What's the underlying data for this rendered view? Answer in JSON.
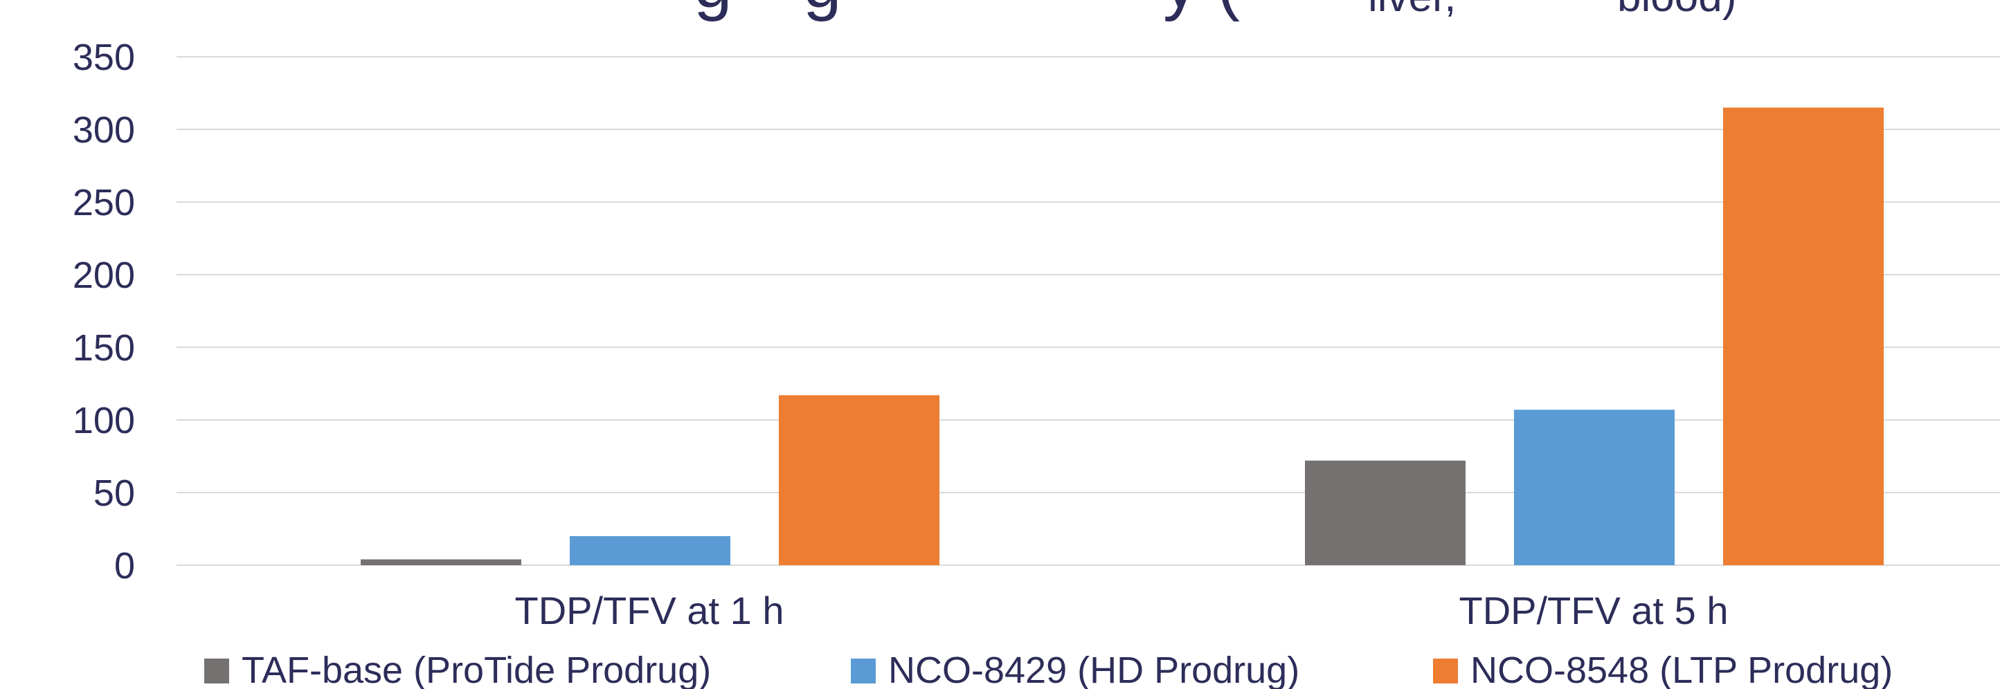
{
  "chart_data": {
    "type": "bar",
    "title_fragments": [
      "g",
      "g",
      "y (",
      "liver,",
      "blood)"
    ],
    "categories": [
      "TDP/TFV at 1 h",
      "TDP/TFV at 5 h"
    ],
    "series": [
      {
        "name": "TAF-base (ProTide Prodrug)",
        "values": [
          4,
          72
        ],
        "color": "#757171"
      },
      {
        "name": "NCO-8429 (HD Prodrug)",
        "values": [
          20,
          107
        ],
        "color": "#5b9bd5"
      },
      {
        "name": "NCO-8548 (LTP Prodrug)",
        "values": [
          117,
          315
        ],
        "color": "#ed7d31"
      }
    ],
    "ylim": [
      0,
      350
    ],
    "yticks": [
      "0",
      "50",
      "100",
      "150",
      "200",
      "250",
      "300",
      "350"
    ],
    "ytick_values": [
      0,
      50,
      100,
      150,
      200,
      250,
      300,
      350
    ],
    "grid": true,
    "legend_position": "bottom",
    "text_color": "#2d2d5a",
    "grid_color": "#d9d9d9"
  }
}
